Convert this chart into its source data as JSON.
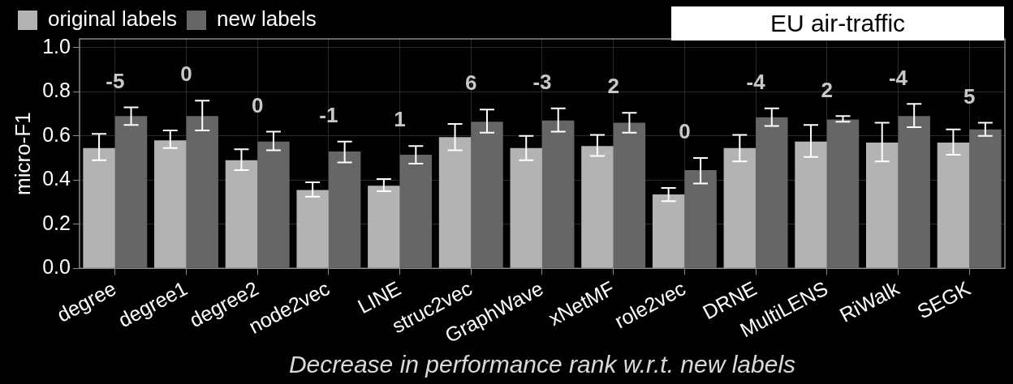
{
  "chart_data": {
    "type": "bar",
    "title": "EU air-traffic",
    "xlabel": "Decrease in performance rank w.r.t. new labels",
    "ylabel": "micro-F1",
    "categories": [
      "degree",
      "degree1",
      "degree2",
      "node2vec",
      "LINE",
      "struc2vec",
      "GraphWave",
      "xNetMF",
      "role2vec",
      "DRNE",
      "MultiLENS",
      "RiWalk",
      "SEGK"
    ],
    "series": [
      {
        "name": "original labels",
        "color": "#b3b3b3",
        "values": [
          0.545,
          0.58,
          0.49,
          0.355,
          0.375,
          0.595,
          0.545,
          0.555,
          0.335,
          0.545,
          0.575,
          0.57,
          0.57
        ],
        "errors": [
          [
            0.49,
            0.61
          ],
          [
            0.545,
            0.625
          ],
          [
            0.445,
            0.54
          ],
          [
            0.325,
            0.39
          ],
          [
            0.35,
            0.405
          ],
          [
            0.535,
            0.655
          ],
          [
            0.49,
            0.6
          ],
          [
            0.51,
            0.605
          ],
          [
            0.305,
            0.365
          ],
          [
            0.485,
            0.605
          ],
          [
            0.505,
            0.65
          ],
          [
            0.485,
            0.66
          ],
          [
            0.515,
            0.63
          ]
        ]
      },
      {
        "name": "new labels",
        "color": "#666666",
        "values": [
          0.69,
          0.69,
          0.575,
          0.53,
          0.515,
          0.665,
          0.67,
          0.66,
          0.445,
          0.685,
          0.675,
          0.69,
          0.63
        ],
        "errors": [
          [
            0.65,
            0.73
          ],
          [
            0.625,
            0.76
          ],
          [
            0.535,
            0.62
          ],
          [
            0.48,
            0.575
          ],
          [
            0.475,
            0.555
          ],
          [
            0.615,
            0.72
          ],
          [
            0.62,
            0.725
          ],
          [
            0.615,
            0.705
          ],
          [
            0.385,
            0.5
          ],
          [
            0.645,
            0.725
          ],
          [
            0.665,
            0.69
          ],
          [
            0.64,
            0.745
          ],
          [
            0.6,
            0.66
          ]
        ]
      }
    ],
    "ylim": [
      0,
      1.04
    ],
    "yticks": [
      {
        "value": 0,
        "label": "0.0"
      },
      0.2,
      0.4,
      0.6,
      0.8,
      {
        "value": 1.0,
        "label": "1.0"
      }
    ],
    "grid": true,
    "legend": "top left",
    "annotations": [
      "-5",
      "0",
      "0",
      "-1",
      "1",
      "6",
      "-3",
      "2",
      "0",
      "-4",
      "2",
      "-4",
      "5"
    ]
  }
}
